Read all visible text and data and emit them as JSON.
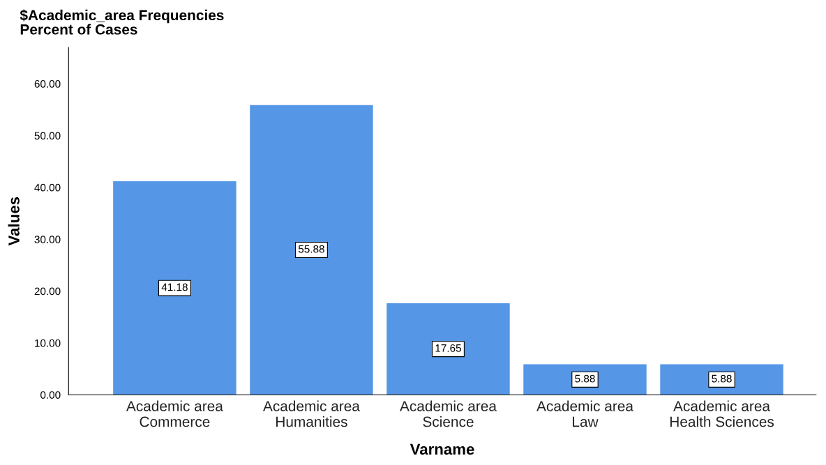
{
  "chart_data": {
    "type": "bar",
    "title": "$Academic_area Frequencies",
    "subtitle": "Percent of Cases",
    "xlabel": "Varname",
    "ylabel": "Values",
    "categories": [
      "Academic area\nCommerce",
      "Academic area\nHumanities",
      "Academic area\nScience",
      "Academic area\nLaw",
      "Academic area\nHealth Sciences"
    ],
    "values": [
      41.18,
      55.88,
      17.65,
      5.88,
      5.88
    ],
    "color": "#5596e6",
    "ylim": [
      0,
      67
    ],
    "yticks": [
      {
        "value": 0,
        "label": "0.00"
      },
      {
        "value": 10,
        "label": "10.00"
      },
      {
        "value": 20,
        "label": "20.00"
      },
      {
        "value": 30,
        "label": "30.00"
      },
      {
        "value": 40,
        "label": "40.00"
      },
      {
        "value": 50,
        "label": "50.00"
      },
      {
        "value": 60,
        "label": "60.00"
      }
    ],
    "data_labels": true,
    "grid": false,
    "legend": false
  }
}
